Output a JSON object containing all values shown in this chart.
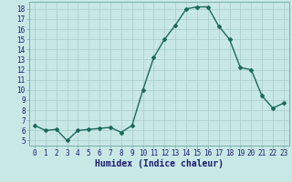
{
  "x": [
    0,
    1,
    2,
    3,
    4,
    5,
    6,
    7,
    8,
    9,
    10,
    11,
    12,
    13,
    14,
    15,
    16,
    17,
    18,
    19,
    20,
    21,
    22,
    23
  ],
  "y": [
    6.5,
    6.0,
    6.1,
    5.0,
    6.0,
    6.1,
    6.2,
    6.3,
    5.8,
    6.5,
    10.0,
    13.2,
    15.0,
    16.4,
    18.0,
    18.2,
    18.2,
    16.3,
    15.0,
    12.2,
    12.0,
    9.4,
    8.2,
    8.7
  ],
  "line_color": "#1a6b5a",
  "marker": "D",
  "marker_size": 2.0,
  "bg_color": "#c8e8e5",
  "grid_color": "#a8ccca",
  "xlabel": "Humidex (Indice chaleur)",
  "xlim": [
    -0.5,
    23.5
  ],
  "ylim": [
    4.5,
    18.7
  ],
  "yticks": [
    5,
    6,
    7,
    8,
    9,
    10,
    11,
    12,
    13,
    14,
    15,
    16,
    17,
    18
  ],
  "xticks": [
    0,
    1,
    2,
    3,
    4,
    5,
    6,
    7,
    8,
    9,
    10,
    11,
    12,
    13,
    14,
    15,
    16,
    17,
    18,
    19,
    20,
    21,
    22,
    23
  ],
  "tick_fontsize": 5.5,
  "label_fontsize": 7.0,
  "linewidth": 1.0
}
